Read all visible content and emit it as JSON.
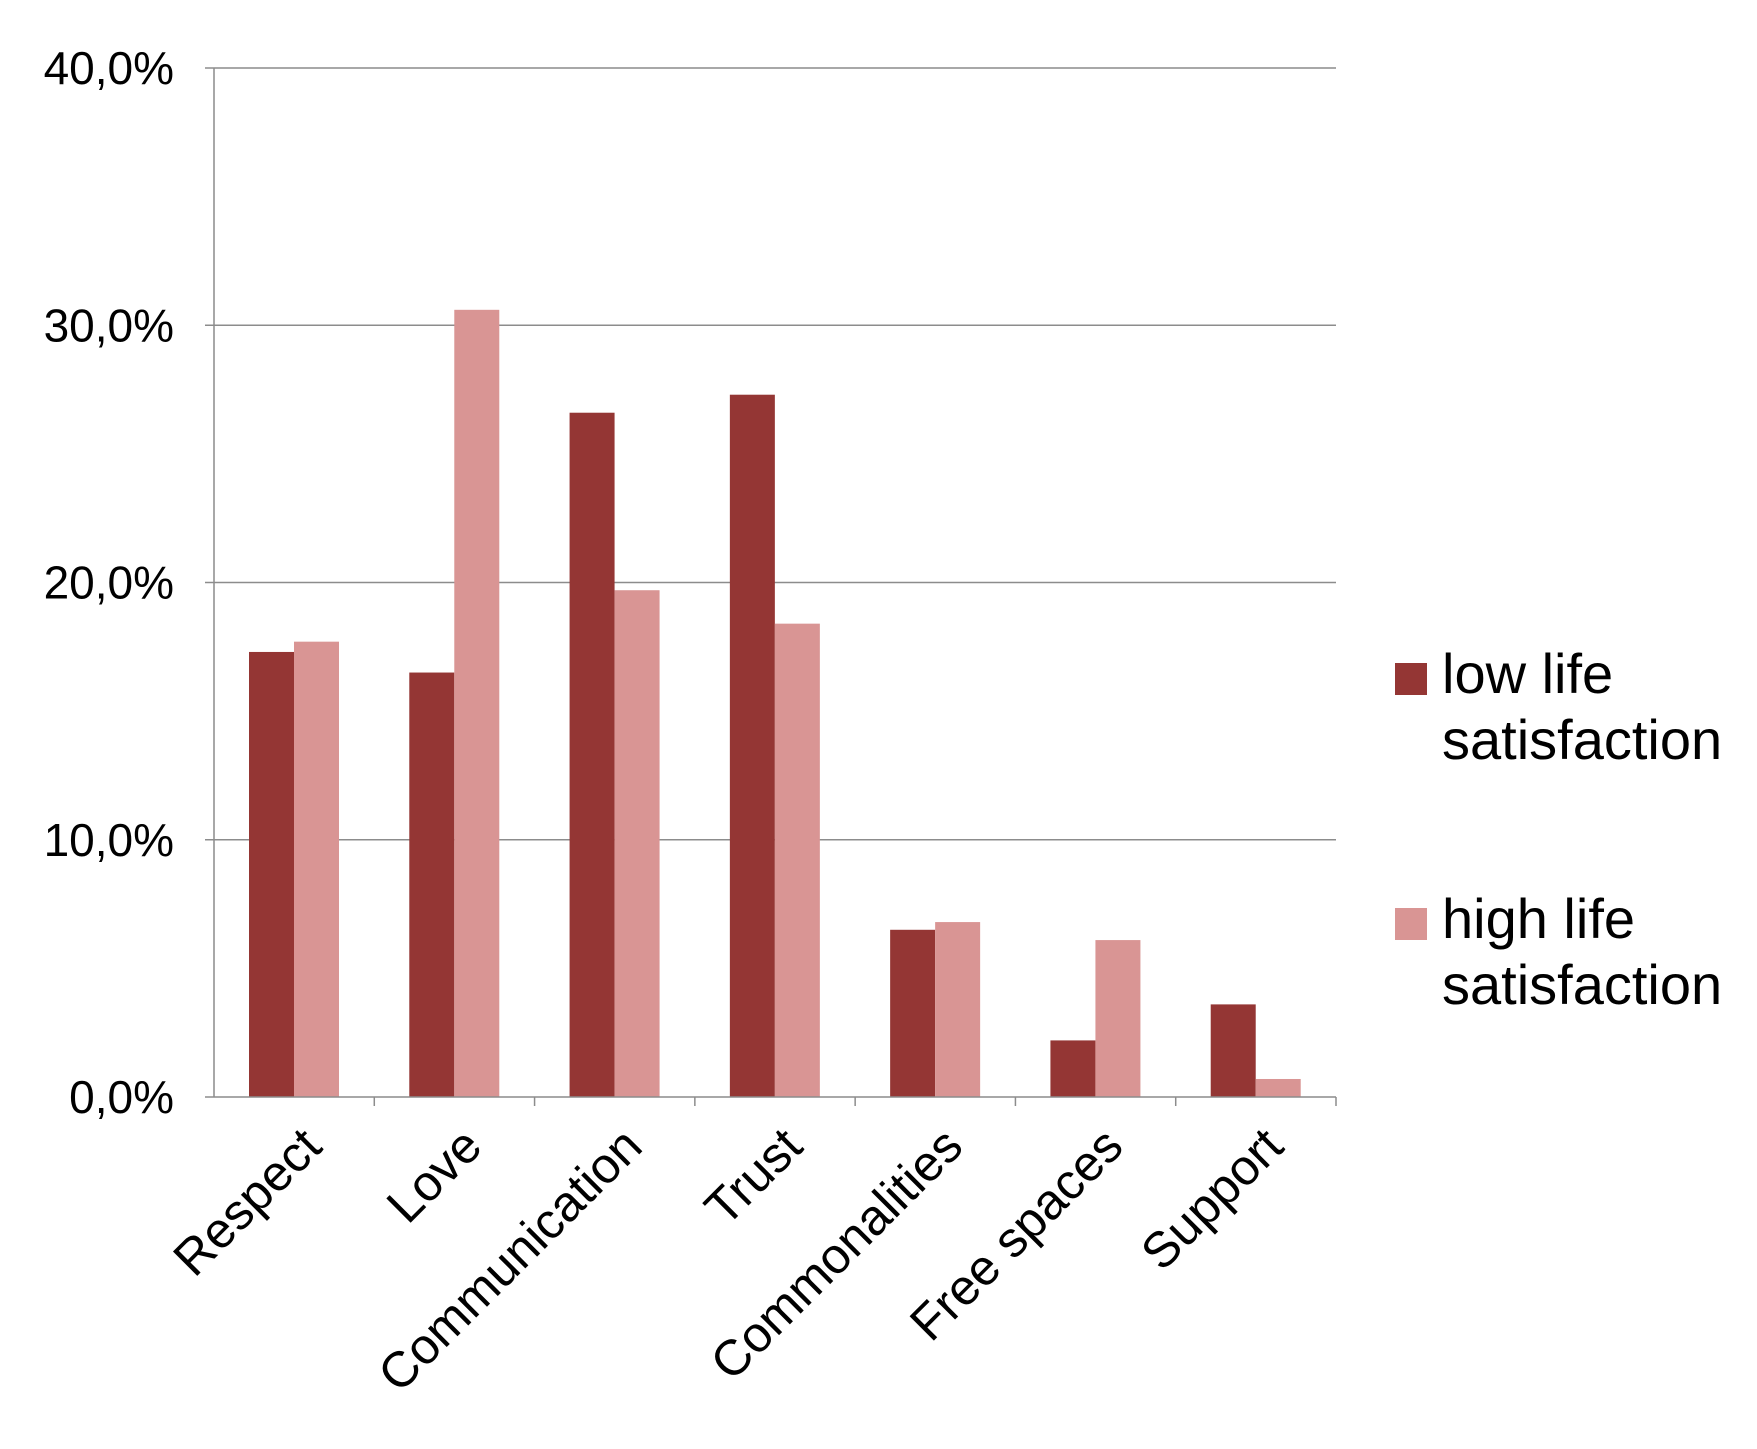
{
  "chart_data": {
    "type": "bar",
    "categories": [
      "Respect",
      "Love",
      "Communication",
      "Trust",
      "Commonalities",
      "Free spaces",
      "Support"
    ],
    "series": [
      {
        "name": "low life satisfaction",
        "legend_lines": [
          "low life",
          "satisfaction"
        ],
        "color": "#943634",
        "values": [
          17.3,
          16.5,
          26.6,
          27.3,
          6.5,
          2.2,
          3.6
        ]
      },
      {
        "name": "high life satisfaction",
        "legend_lines": [
          "high life",
          "satisfaction"
        ],
        "color": "#D99594",
        "values": [
          17.7,
          30.6,
          19.7,
          18.4,
          6.8,
          6.1,
          0.7
        ]
      }
    ],
    "ylim": [
      0,
      40
    ],
    "yticks": [
      "0,0%",
      "10,0%",
      "20,0%",
      "30,0%",
      "40,0%"
    ],
    "ytick_values": [
      0,
      10,
      20,
      30,
      40
    ],
    "grid": true,
    "legend_position": "right",
    "title": "",
    "xlabel": "",
    "ylabel": ""
  }
}
